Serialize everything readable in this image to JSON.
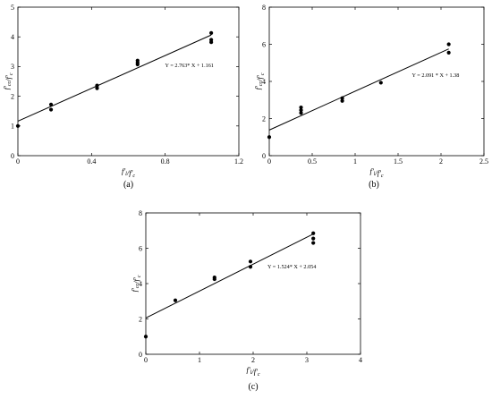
{
  "chart_data": [
    {
      "type": "scatter",
      "panel_label": "(a)",
      "xlabel": "f'l/f'c",
      "ylabel": "f'cc/f'c",
      "xlim": [
        0,
        1.2
      ],
      "ylim": [
        0,
        5
      ],
      "xticks": [
        "0",
        "0.4",
        "0.8",
        "1.2"
      ],
      "xtick_values": [
        0,
        0.4,
        0.8,
        1.2
      ],
      "yticks": [
        "0",
        "1",
        "2",
        "3",
        "4",
        "5"
      ],
      "ytick_values": [
        0,
        1,
        2,
        3,
        4,
        5
      ],
      "points": [
        {
          "x": 0,
          "y": 1.0
        },
        {
          "x": 0.18,
          "y": 1.55
        },
        {
          "x": 0.18,
          "y": 1.72
        },
        {
          "x": 0.43,
          "y": 2.27
        },
        {
          "x": 0.43,
          "y": 2.36
        },
        {
          "x": 0.65,
          "y": 3.07
        },
        {
          "x": 0.65,
          "y": 3.13
        },
        {
          "x": 0.65,
          "y": 3.2
        },
        {
          "x": 1.05,
          "y": 3.82
        },
        {
          "x": 1.05,
          "y": 3.9
        },
        {
          "x": 1.05,
          "y": 4.13
        }
      ],
      "fit": {
        "slope": 2.763,
        "intercept": 1.161,
        "x_range": [
          0,
          1.05
        ]
      },
      "equation": "Y = 2.763* X + 1.161"
    },
    {
      "type": "scatter",
      "panel_label": "(b)",
      "xlabel": "f'l/f'c",
      "ylabel": "f'cc/f'c",
      "xlim": [
        0,
        2.5
      ],
      "ylim": [
        0,
        8
      ],
      "xticks": [
        "0",
        "0.5",
        "1",
        "1.5",
        "2",
        "2.5"
      ],
      "xtick_values": [
        0,
        0.5,
        1,
        1.5,
        2,
        2.5
      ],
      "yticks": [
        "0",
        "2",
        "4",
        "6",
        "8"
      ],
      "ytick_values": [
        0,
        2,
        4,
        6,
        8
      ],
      "points": [
        {
          "x": 0,
          "y": 1.0
        },
        {
          "x": 0.37,
          "y": 2.3
        },
        {
          "x": 0.37,
          "y": 2.45
        },
        {
          "x": 0.37,
          "y": 2.6
        },
        {
          "x": 0.85,
          "y": 2.95
        },
        {
          "x": 0.85,
          "y": 3.1
        },
        {
          "x": 1.3,
          "y": 3.93
        },
        {
          "x": 2.09,
          "y": 5.55
        },
        {
          "x": 2.09,
          "y": 6.0
        }
      ],
      "fit": {
        "slope": 2.091,
        "intercept": 1.38,
        "x_range": [
          0,
          2.09
        ]
      },
      "equation": "Y = 2.091 * X + 1.38"
    },
    {
      "type": "scatter",
      "panel_label": "(c)",
      "xlabel": "f'l/f'c",
      "ylabel": "f'cc/f'c",
      "xlim": [
        0,
        4
      ],
      "ylim": [
        0,
        8
      ],
      "xticks": [
        "0",
        "1",
        "2",
        "3",
        "4"
      ],
      "xtick_values": [
        0,
        1,
        2,
        3,
        4
      ],
      "yticks": [
        "0",
        "2",
        "4",
        "6",
        "8"
      ],
      "ytick_values": [
        0,
        2,
        4,
        6,
        8
      ],
      "points": [
        {
          "x": 0,
          "y": 1.0
        },
        {
          "x": 0.55,
          "y": 3.05
        },
        {
          "x": 1.28,
          "y": 4.25
        },
        {
          "x": 1.28,
          "y": 4.35
        },
        {
          "x": 1.95,
          "y": 4.95
        },
        {
          "x": 1.95,
          "y": 5.25
        },
        {
          "x": 3.12,
          "y": 6.3
        },
        {
          "x": 3.12,
          "y": 6.55
        },
        {
          "x": 3.12,
          "y": 6.85
        }
      ],
      "fit": {
        "slope": 1.524,
        "intercept": 2.054,
        "x_range": [
          0,
          3.12
        ]
      },
      "equation": "Y = 1.524* X + 2.054"
    }
  ]
}
